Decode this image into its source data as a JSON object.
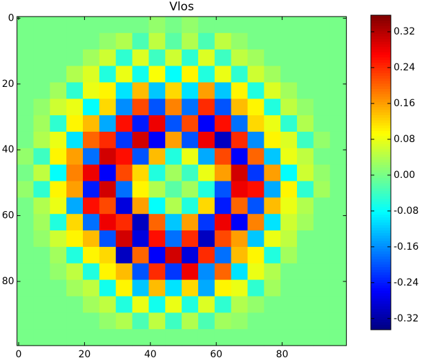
{
  "chart_data": {
    "type": "heatmap",
    "title": "Vlos",
    "colormap": "jet",
    "xlim": [
      -0.5,
      99.5
    ],
    "ylim": [
      99.5,
      -0.5
    ],
    "xticks": [
      0,
      20,
      40,
      60,
      80
    ],
    "yticks": [
      0,
      20,
      40,
      60,
      80
    ],
    "zlim": [
      -0.345,
      0.357
    ],
    "colorbar_ticks": [
      {
        "value": 0.32,
        "label": "0.32"
      },
      {
        "value": 0.24,
        "label": "0.24"
      },
      {
        "value": 0.16,
        "label": "0.16"
      },
      {
        "value": 0.08,
        "label": "0.08"
      },
      {
        "value": 0,
        "label": "0.00"
      },
      {
        "value": -0.08,
        "label": "-0.08"
      },
      {
        "value": -0.16,
        "label": "-0.16"
      },
      {
        "value": -0.24,
        "label": "-0.24"
      },
      {
        "value": -0.32,
        "label": "-0.32"
      }
    ],
    "z": [
      [
        0,
        0,
        0,
        0,
        0,
        0,
        0,
        0,
        0.02,
        0,
        0.02,
        0,
        0,
        0,
        0,
        0,
        0,
        0,
        0,
        0
      ],
      [
        0,
        0,
        0,
        0,
        0,
        0.02,
        0.04,
        -0.03,
        0.05,
        -0.02,
        0.04,
        -0.03,
        0.05,
        0.02,
        0,
        0,
        0,
        0,
        0,
        0
      ],
      [
        0,
        0,
        0,
        0,
        0.03,
        0.06,
        -0.05,
        0.07,
        -0.04,
        0.06,
        -0.05,
        0.07,
        -0.04,
        0.05,
        0.03,
        0,
        0,
        0,
        0,
        0
      ],
      [
        0,
        0,
        0,
        0.04,
        0.07,
        -0.06,
        0.08,
        -0.07,
        0.09,
        -0.08,
        0.1,
        -0.06,
        0.08,
        -0.05,
        0.06,
        0.03,
        0,
        0,
        0,
        0
      ],
      [
        0,
        0,
        0.03,
        -0.05,
        0.08,
        0.1,
        -0.1,
        0.14,
        -0.12,
        0.12,
        -0.1,
        0.16,
        -0.12,
        0.1,
        -0.06,
        0.07,
        0.03,
        0,
        0,
        0
      ],
      [
        0,
        0.02,
        0.06,
        0.08,
        -0.08,
        0.12,
        -0.16,
        0.22,
        -0.2,
        0.18,
        -0.18,
        0.24,
        -0.2,
        0.14,
        0.1,
        -0.06,
        0.05,
        0.02,
        0,
        0
      ],
      [
        0,
        0.03,
        -0.05,
        0.1,
        0.14,
        -0.14,
        0.26,
        -0.24,
        0.28,
        -0.2,
        0.22,
        -0.26,
        0.26,
        -0.18,
        0.12,
        0.08,
        -0.05,
        0.04,
        0,
        0
      ],
      [
        0,
        0.04,
        0.08,
        -0.1,
        0.2,
        0.24,
        -0.22,
        0.3,
        -0.26,
        0.16,
        -0.2,
        0.28,
        -0.3,
        0.24,
        -0.16,
        0.1,
        0.07,
        -0.04,
        0.02,
        0
      ],
      [
        0.02,
        -0.04,
        0.1,
        0.16,
        -0.18,
        0.3,
        0.26,
        -0.2,
        0.14,
        -0.06,
        0.08,
        -0.14,
        0.22,
        -0.26,
        0.2,
        -0.12,
        0.08,
        0.05,
        0,
        0
      ],
      [
        0,
        0.05,
        -0.08,
        0.18,
        0.28,
        -0.26,
        0.22,
        0.12,
        -0.06,
        0.03,
        -0.04,
        0.08,
        0.16,
        0.3,
        -0.22,
        0.16,
        -0.08,
        0.06,
        0.02,
        0
      ],
      [
        0.02,
        -0.05,
        0.1,
        0.16,
        -0.24,
        0.3,
        -0.18,
        0.1,
        0.04,
        -0.02,
        0.03,
        -0.06,
        -0.2,
        0.28,
        0.26,
        -0.14,
        0.1,
        -0.05,
        0.03,
        0
      ],
      [
        0,
        0.04,
        0.08,
        -0.14,
        0.26,
        0.22,
        -0.28,
        0.16,
        -0.08,
        0.04,
        -0.06,
        0.12,
        -0.24,
        0.2,
        -0.2,
        0.14,
        0.08,
        0.04,
        0,
        0
      ],
      [
        0,
        0.03,
        -0.06,
        0.12,
        -0.18,
        0.28,
        0.24,
        -0.3,
        0.2,
        -0.12,
        0.16,
        -0.22,
        0.28,
        -0.26,
        0.18,
        -0.1,
        0.06,
        0.03,
        0,
        0
      ],
      [
        0,
        0.02,
        0.06,
        0.1,
        0.14,
        -0.2,
        0.3,
        -0.28,
        0.26,
        -0.18,
        0.24,
        -0.3,
        0.22,
        0.16,
        -0.12,
        0.08,
        0.05,
        0,
        0,
        0
      ],
      [
        0,
        0,
        0.03,
        -0.06,
        0.1,
        0.12,
        -0.3,
        0.2,
        -0.26,
        0.3,
        -0.28,
        0.24,
        -0.18,
        0.14,
        0.1,
        -0.06,
        0.03,
        0,
        0,
        0
      ],
      [
        0,
        0,
        0.02,
        0.05,
        -0.06,
        0.1,
        0.14,
        -0.2,
        0.24,
        -0.22,
        0.28,
        -0.16,
        0.2,
        -0.1,
        0.08,
        0.04,
        0,
        0,
        0,
        0
      ],
      [
        0,
        0,
        0,
        0.03,
        0.05,
        -0.07,
        0.1,
        -0.12,
        0.14,
        -0.1,
        0.12,
        -0.14,
        0.1,
        0.08,
        -0.05,
        0.03,
        0,
        0,
        0,
        0
      ],
      [
        0,
        0,
        0,
        0,
        0.03,
        0.05,
        -0.06,
        0.08,
        -0.07,
        0.08,
        -0.06,
        0.07,
        -0.05,
        0.04,
        0.02,
        0,
        0,
        0,
        0,
        0
      ],
      [
        0,
        0,
        0,
        0,
        0,
        0.02,
        0.04,
        -0.03,
        0.05,
        -0.04,
        0.04,
        -0.03,
        0.03,
        0.02,
        0,
        0,
        0,
        0,
        0,
        0
      ],
      [
        0,
        0,
        0,
        0,
        0,
        0,
        0,
        0,
        0,
        0,
        0,
        0,
        0,
        0,
        0,
        0,
        0,
        0,
        0,
        0
      ]
    ]
  }
}
